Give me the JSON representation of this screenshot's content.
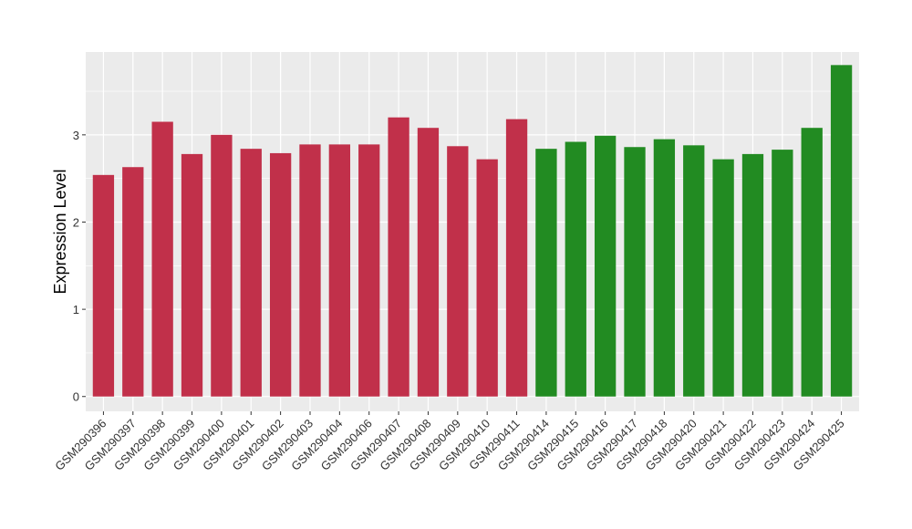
{
  "chart_data": {
    "type": "bar",
    "title": "",
    "xlabel": "",
    "ylabel": "Expression Level",
    "ylim": [
      -0.17,
      3.95
    ],
    "yticks": [
      0,
      1,
      2,
      3
    ],
    "grid": true,
    "legend": "none",
    "colors": {
      "group_a": "#C1304A",
      "group_b": "#228B22",
      "panel_bg": "#EBEBEB",
      "grid": "#FFFFFF"
    },
    "categories": [
      "GSM290396",
      "GSM290397",
      "GSM290398",
      "GSM290399",
      "GSM290400",
      "GSM290401",
      "GSM290402",
      "GSM290403",
      "GSM290404",
      "GSM290406",
      "GSM290407",
      "GSM290408",
      "GSM290409",
      "GSM290410",
      "GSM290411",
      "GSM290414",
      "GSM290415",
      "GSM290416",
      "GSM290417",
      "GSM290418",
      "GSM290420",
      "GSM290421",
      "GSM290422",
      "GSM290423",
      "GSM290424",
      "GSM290425"
    ],
    "values": [
      2.54,
      2.63,
      3.15,
      2.78,
      3.0,
      2.84,
      2.79,
      2.89,
      2.89,
      2.89,
      3.2,
      3.08,
      2.87,
      2.72,
      3.18,
      2.84,
      2.92,
      2.99,
      2.86,
      2.95,
      2.88,
      2.72,
      2.78,
      2.83,
      3.08,
      3.8
    ],
    "groups": [
      "a",
      "a",
      "a",
      "a",
      "a",
      "a",
      "a",
      "a",
      "a",
      "a",
      "a",
      "a",
      "a",
      "a",
      "a",
      "b",
      "b",
      "b",
      "b",
      "b",
      "b",
      "b",
      "b",
      "b",
      "b",
      "b"
    ]
  }
}
